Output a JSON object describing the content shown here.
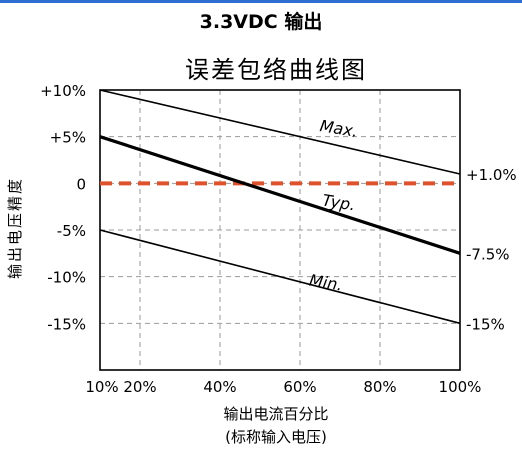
{
  "header": {
    "title": "3.3VDC 输出",
    "accent_color": "#2f6fd1"
  },
  "chart_data": {
    "type": "line",
    "title": "误差包络曲线图",
    "xlabel": "输出电流百分比",
    "xlabel_sub": "(标称输入电压)",
    "ylabel": "输出电压精度",
    "xlim": [
      10,
      100
    ],
    "ylim": [
      -20,
      10
    ],
    "grid": true,
    "x_ticks": [
      {
        "value": 10,
        "label": "10%"
      },
      {
        "value": 20,
        "label": "20%"
      },
      {
        "value": 40,
        "label": "40%"
      },
      {
        "value": 60,
        "label": "60%"
      },
      {
        "value": 80,
        "label": "80%"
      },
      {
        "value": 100,
        "label": "100%"
      }
    ],
    "y_ticks": [
      {
        "value": 10,
        "label": "+10%"
      },
      {
        "value": 5,
        "label": "+5%"
      },
      {
        "value": 0,
        "label": "0"
      },
      {
        "value": -5,
        "label": "-5%"
      },
      {
        "value": -10,
        "label": "-10%"
      },
      {
        "value": -15,
        "label": "-15%"
      }
    ],
    "series": [
      {
        "name": "Max.",
        "x": [
          10,
          100
        ],
        "y": [
          10,
          1
        ],
        "color": "#000000",
        "end_label": "+1.0%"
      },
      {
        "name": "Typ.",
        "x": [
          10,
          100
        ],
        "y": [
          5,
          -7.5
        ],
        "color": "#000000",
        "end_label": "-7.5%"
      },
      {
        "name": "Min.",
        "x": [
          10,
          100
        ],
        "y": [
          -5,
          -15
        ],
        "color": "#000000",
        "end_label": "-15%"
      }
    ],
    "reference_line": {
      "y": 0,
      "color": "#e0522b"
    }
  }
}
